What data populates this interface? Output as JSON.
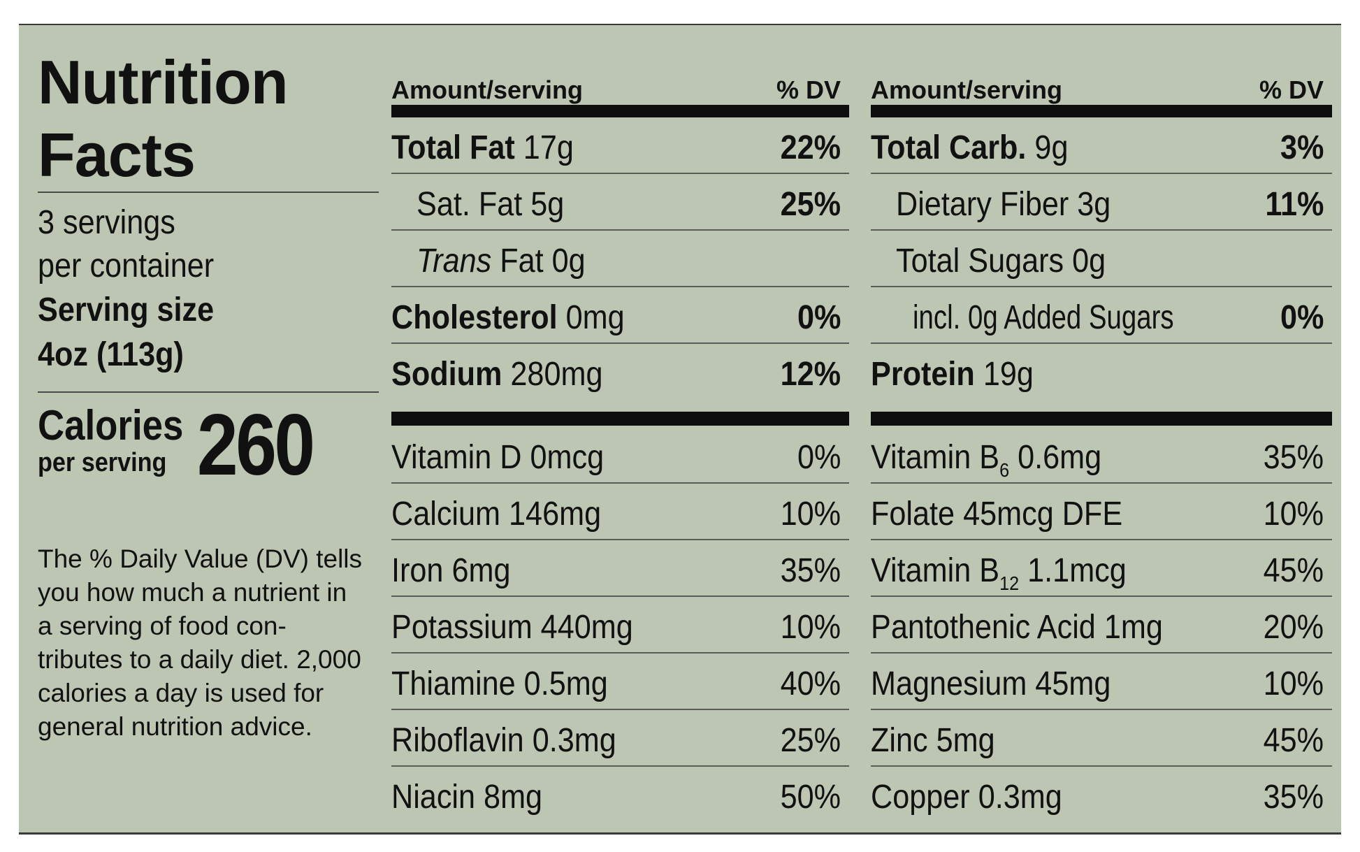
{
  "label": {
    "title_line1": "Nutrition",
    "title_line2": "Facts",
    "servings_line1": "3 servings",
    "servings_line2": "per container",
    "serving_size_label": "Serving size",
    "serving_size_value": "4oz (113g)",
    "calories_label": "Calories",
    "calories_sub": "per serving",
    "calories_value": "260",
    "dv_note": "The % Daily Value (DV) tells you how much a nutrient in a serving of food con-tributes to a daily diet. 2,000 calories a day is used for general nutrition advice."
  },
  "header": {
    "amount_label": "Amount/serving",
    "dv_label": "% DV"
  },
  "left_macros": [
    {
      "name": "Total Fat",
      "amount": "17g",
      "dv": "22%"
    },
    {
      "name": "Sat. Fat",
      "amount": "5g",
      "dv": "25%"
    },
    {
      "name": "Trans",
      "amount": "Fat 0g",
      "dv": ""
    },
    {
      "name": "Cholesterol",
      "amount": "0mg",
      "dv": "0%"
    },
    {
      "name": "Sodium",
      "amount": "280mg",
      "dv": "12%"
    }
  ],
  "right_macros": [
    {
      "name": "Total Carb.",
      "amount": "9g",
      "dv": "3%"
    },
    {
      "name": "Dietary Fiber",
      "amount": "3g",
      "dv": "11%"
    },
    {
      "name": "Total Sugars",
      "amount": "0g",
      "dv": ""
    },
    {
      "name": "incl. 0g Added Sugars",
      "amount": "",
      "dv": "0%"
    },
    {
      "name": "Protein",
      "amount": "19g",
      "dv": ""
    }
  ],
  "left_vitamins": [
    {
      "label": "Vitamin D 0mcg",
      "dv": "0%"
    },
    {
      "label": "Calcium 146mg",
      "dv": "10%"
    },
    {
      "label": "Iron 6mg",
      "dv": "35%"
    },
    {
      "label": "Potassium 440mg",
      "dv": "10%"
    },
    {
      "label": "Thiamine 0.5mg",
      "dv": "40%"
    },
    {
      "label": "Riboflavin 0.3mg",
      "dv": "25%"
    },
    {
      "label": "Niacin 8mg",
      "dv": "50%"
    }
  ],
  "right_vitamins": [
    {
      "prefix": "Vitamin B",
      "sub": "6",
      "suffix": " 0.6mg",
      "dv": "35%"
    },
    {
      "prefix": "Folate 45mcg DFE",
      "sub": "",
      "suffix": "",
      "dv": "10%"
    },
    {
      "prefix": "Vitamin B",
      "sub": "12",
      "suffix": " 1.1mcg",
      "dv": "45%"
    },
    {
      "prefix": "Pantothenic Acid 1mg",
      "sub": "",
      "suffix": "",
      "dv": "20%"
    },
    {
      "prefix": "Magnesium 45mg",
      "sub": "",
      "suffix": "",
      "dv": "10%"
    },
    {
      "prefix": "Zinc 5mg",
      "sub": "",
      "suffix": "",
      "dv": "45%"
    },
    {
      "prefix": "Copper 0.3mg",
      "sub": "",
      "suffix": "",
      "dv": "35%"
    }
  ]
}
